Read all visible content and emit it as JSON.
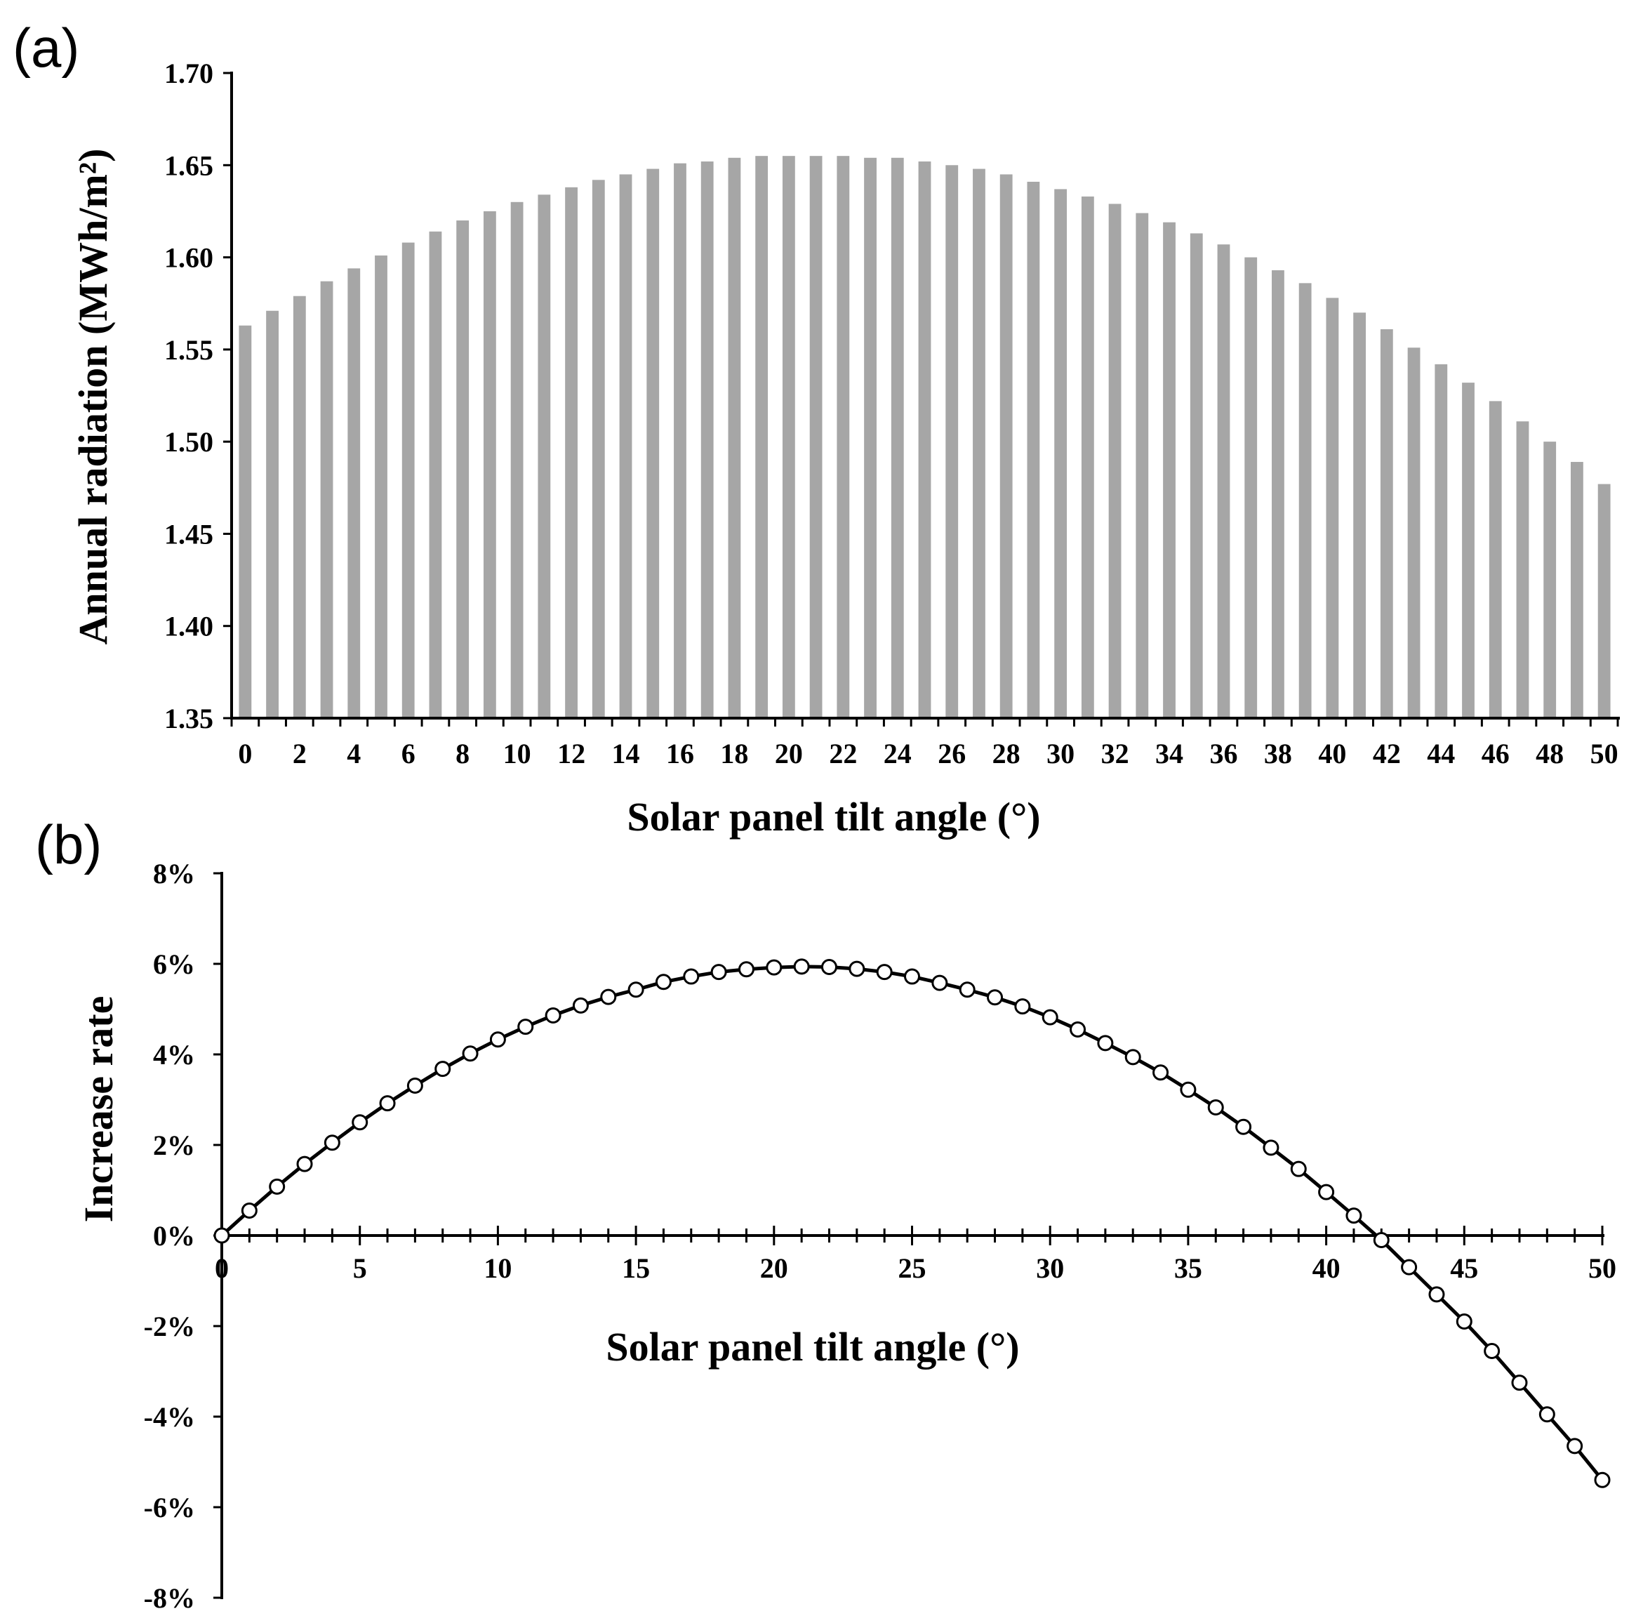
{
  "chart_data": [
    {
      "panel": "(a)",
      "type": "bar",
      "categories": [
        0,
        1,
        2,
        3,
        4,
        5,
        6,
        7,
        8,
        9,
        10,
        11,
        12,
        13,
        14,
        15,
        16,
        17,
        18,
        19,
        20,
        21,
        22,
        23,
        24,
        25,
        26,
        27,
        28,
        29,
        30,
        31,
        32,
        33,
        34,
        35,
        36,
        37,
        38,
        39,
        40,
        41,
        42,
        43,
        44,
        45,
        46,
        47,
        48,
        49,
        50
      ],
      "values": [
        1.563,
        1.571,
        1.579,
        1.587,
        1.594,
        1.601,
        1.608,
        1.614,
        1.62,
        1.625,
        1.63,
        1.634,
        1.638,
        1.642,
        1.645,
        1.648,
        1.651,
        1.652,
        1.654,
        1.655,
        1.655,
        1.655,
        1.655,
        1.654,
        1.654,
        1.652,
        1.65,
        1.648,
        1.645,
        1.641,
        1.637,
        1.633,
        1.629,
        1.624,
        1.619,
        1.613,
        1.607,
        1.6,
        1.593,
        1.586,
        1.578,
        1.57,
        1.561,
        1.551,
        1.542,
        1.532,
        1.522,
        1.511,
        1.5,
        1.489,
        1.477
      ],
      "x_tick_labels": [
        "0",
        "2",
        "4",
        "6",
        "8",
        "10",
        "12",
        "14",
        "16",
        "18",
        "20",
        "22",
        "24",
        "26",
        "28",
        "30",
        "32",
        "34",
        "36",
        "38",
        "40",
        "42",
        "44",
        "46",
        "48",
        "50"
      ],
      "y_tick_labels": [
        "1.35",
        "1.40",
        "1.45",
        "1.50",
        "1.55",
        "1.60",
        "1.65",
        "1.70"
      ],
      "xlabel": "Solar panel tilt angle (°)",
      "ylabel": "Annual radiation (MWh/m²)",
      "ylim": [
        1.35,
        1.7
      ]
    },
    {
      "panel": "(b)",
      "type": "line",
      "x": [
        0,
        1,
        2,
        3,
        4,
        5,
        6,
        7,
        8,
        9,
        10,
        11,
        12,
        13,
        14,
        15,
        16,
        17,
        18,
        19,
        20,
        21,
        22,
        23,
        24,
        25,
        26,
        27,
        28,
        29,
        30,
        31,
        32,
        33,
        34,
        35,
        36,
        37,
        38,
        39,
        40,
        41,
        42,
        43,
        44,
        45,
        46,
        47,
        48,
        49,
        50
      ],
      "series": [
        {
          "name": "Increase rate",
          "values": [
            0,
            0.55,
            1.08,
            1.58,
            2.05,
            2.5,
            2.92,
            3.31,
            3.68,
            4.02,
            4.33,
            4.61,
            4.86,
            5.08,
            5.27,
            5.43,
            5.6,
            5.72,
            5.82,
            5.88,
            5.92,
            5.94,
            5.93,
            5.89,
            5.82,
            5.72,
            5.58,
            5.43,
            5.26,
            5.06,
            4.82,
            4.55,
            4.25,
            3.94,
            3.6,
            3.22,
            2.83,
            2.4,
            1.94,
            1.47,
            0.96,
            0.44,
            -0.1,
            -0.7,
            -1.3,
            -1.9,
            -2.55,
            -3.25,
            -3.95,
            -4.65,
            -5.4
          ]
        }
      ],
      "x_tick_labels": [
        "0",
        "5",
        "10",
        "15",
        "20",
        "25",
        "30",
        "35",
        "40",
        "45",
        "50"
      ],
      "y_tick_labels": [
        "-8%",
        "-6%",
        "-4%",
        "-2%",
        "0%",
        "2%",
        "4%",
        "6%",
        "8%"
      ],
      "xlabel": "Solar panel tilt angle (°)",
      "ylabel": "Increase rate",
      "xlim": [
        0,
        50
      ],
      "ylim": [
        -8,
        8
      ]
    }
  ]
}
